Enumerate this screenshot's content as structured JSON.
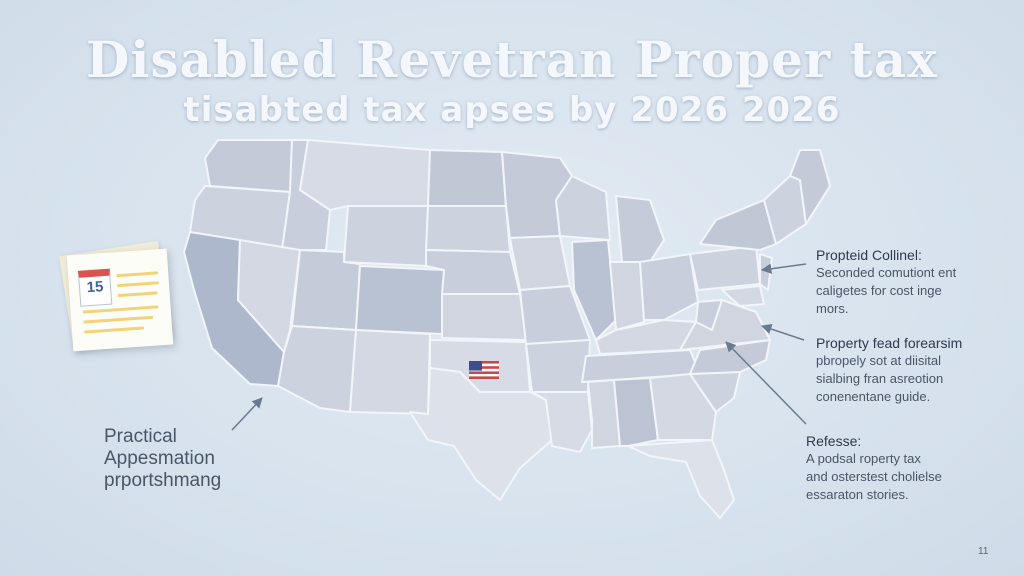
{
  "header": {
    "title": "Disabled Revetran Proper tax",
    "subtitle": "tisabted tax apses by 2026 2026"
  },
  "callouts": [
    {
      "heading": "Propteid Collinel:",
      "lines": [
        "Seconded comutiont ent",
        "caligetes for cost inge",
        "mors."
      ]
    },
    {
      "heading": "Property fead forearsim",
      "lines": [
        "pbropely sot at diisital",
        "sialbing fran asreotion",
        "conenentane guide."
      ]
    },
    {
      "heading": "Refesse:",
      "lines": [
        "A podsal roperty tax",
        "and osterstest cholielse",
        "essaraton stories."
      ]
    }
  ],
  "left_callout": {
    "lines": [
      "Practical",
      "Appesmation",
      "prportshmang"
    ]
  },
  "document_icon": {
    "date": "15",
    "icon": "calendar-document-icon"
  },
  "flag_marker": {
    "icon": "us-flag-icon"
  },
  "page_number": "11",
  "colors": {
    "state_fill": "#c9cfdc",
    "state_stroke": "#f2f5f9",
    "highlight": "#aeb8cc",
    "arrow": "#6a7a90"
  }
}
